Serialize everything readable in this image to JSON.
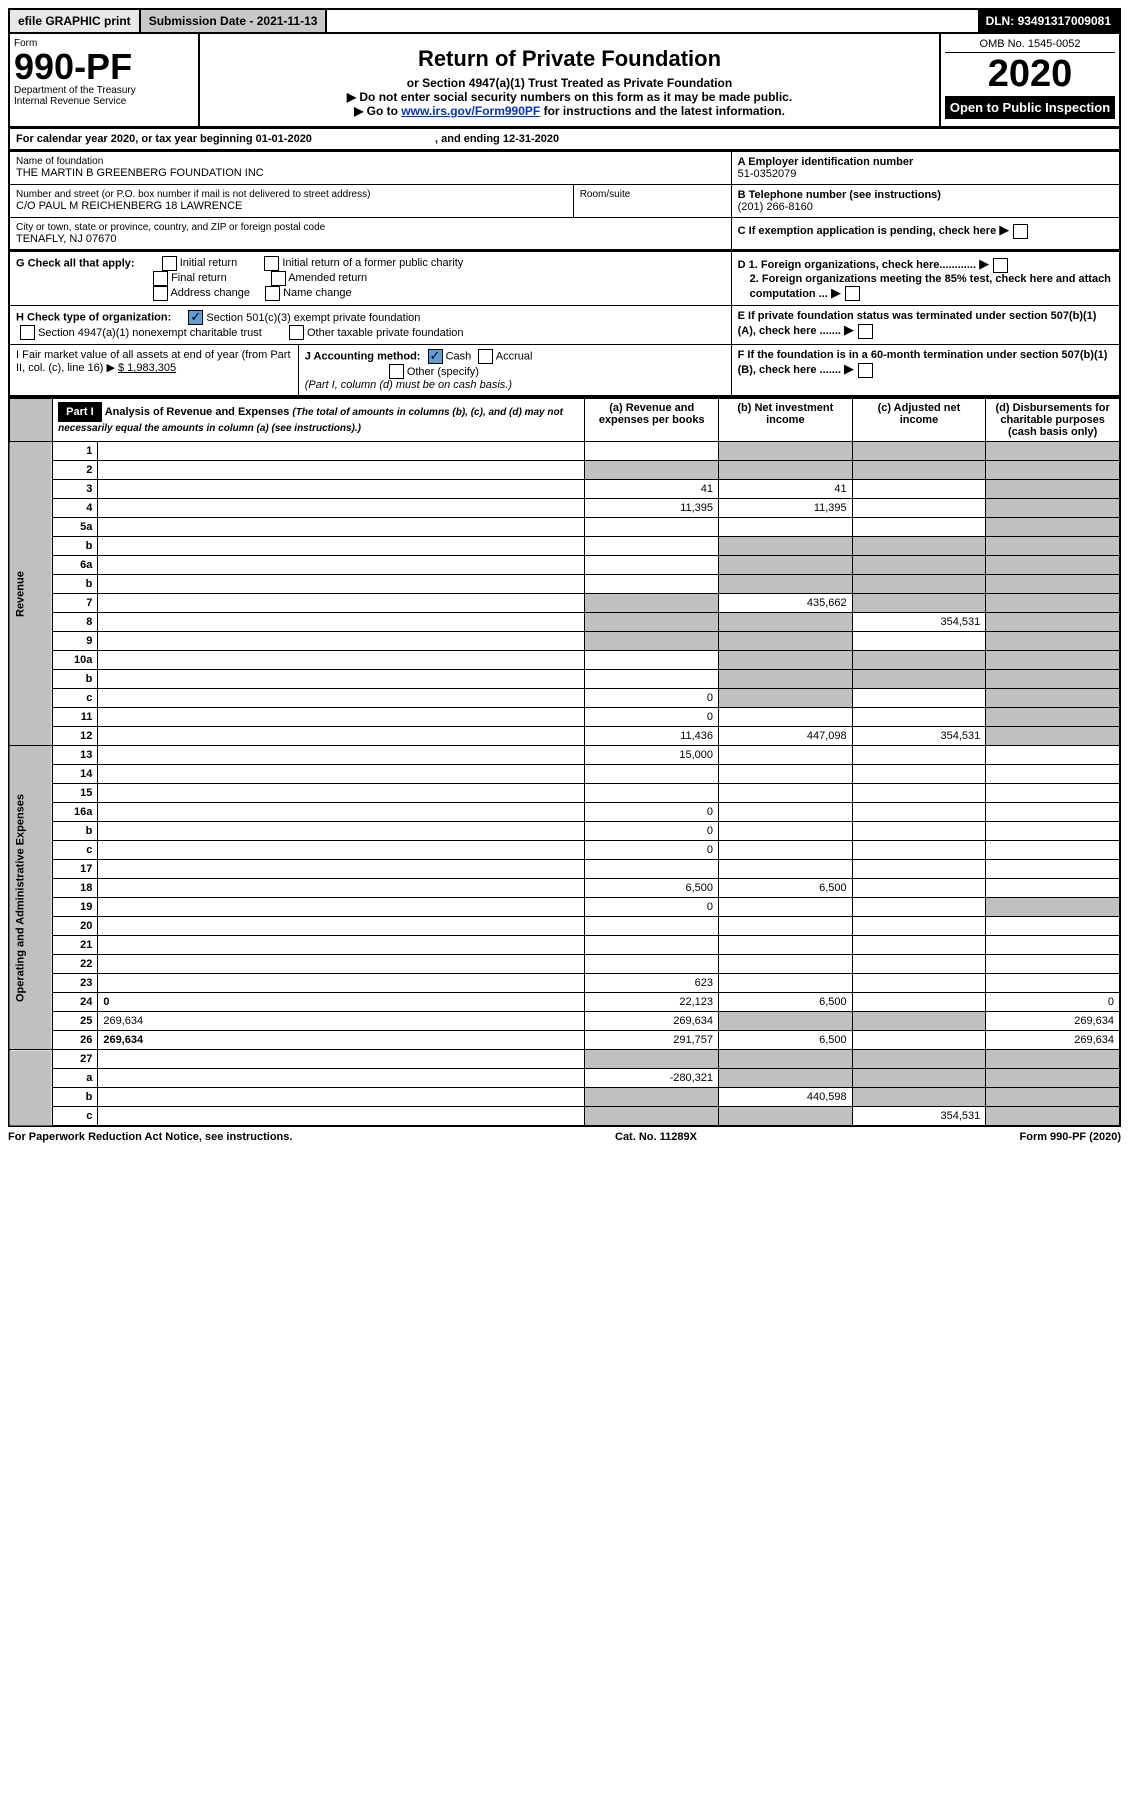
{
  "topbar": {
    "efile": "efile GRAPHIC print",
    "subdate_label": "Submission Date - ",
    "subdate": "2021-11-13",
    "dln_label": "DLN: ",
    "dln": "93491317009081"
  },
  "header": {
    "form_word": "Form",
    "form_num": "990-PF",
    "dept": "Department of the Treasury",
    "irs": "Internal Revenue Service",
    "title": "Return of Private Foundation",
    "subtitle": "or Section 4947(a)(1) Trust Treated as Private Foundation",
    "note1": "▶ Do not enter social security numbers on this form as it may be made public.",
    "note2_pre": "▶ Go to ",
    "note2_link": "www.irs.gov/Form990PF",
    "note2_post": " for instructions and the latest information.",
    "omb": "OMB No. 1545-0052",
    "year": "2020",
    "open": "Open to Public Inspection"
  },
  "cal": {
    "line_pre": "For calendar year 2020, or tax year beginning ",
    "begin": "01-01-2020",
    "mid": " , and ending ",
    "end": "12-31-2020"
  },
  "entity": {
    "name_label": "Name of foundation",
    "name": "THE MARTIN B GREENBERG FOUNDATION INC",
    "addr_label": "Number and street (or P.O. box number if mail is not delivered to street address)",
    "addr": "C/O PAUL M REICHENBERG 18 LAWRENCE",
    "room_label": "Room/suite",
    "city_label": "City or town, state or province, country, and ZIP or foreign postal code",
    "city": "TENAFLY, NJ  07670",
    "a_label": "A Employer identification number",
    "a_val": "51-0352079",
    "b_label": "B Telephone number (see instructions)",
    "b_val": "(201) 266-8160",
    "c_label": "C If exemption application is pending, check here"
  },
  "G": {
    "label": "G Check all that apply:",
    "opts": [
      "Initial return",
      "Initial return of a former public charity",
      "Final return",
      "Amended return",
      "Address change",
      "Name change"
    ]
  },
  "H": {
    "label": "H Check type of organization:",
    "opt1": "Section 501(c)(3) exempt private foundation",
    "opt2": "Section 4947(a)(1) nonexempt charitable trust",
    "opt3": "Other taxable private foundation"
  },
  "D": {
    "d1": "D 1. Foreign organizations, check here............",
    "d2": "2. Foreign organizations meeting the 85% test, check here and attach computation ..."
  },
  "E": "E  If private foundation status was terminated under section 507(b)(1)(A), check here .......",
  "F": "F  If the foundation is in a 60-month termination under section 507(b)(1)(B), check here .......",
  "I": {
    "label": "I Fair market value of all assets at end of year (from Part II, col. (c), line 16) ▶",
    "val": "$  1,983,305"
  },
  "J": {
    "label": "J Accounting method:",
    "cash": "Cash",
    "accrual": "Accrual",
    "other": "Other (specify)",
    "note": "(Part I, column (d) must be on cash basis.)"
  },
  "part1": {
    "head": "Part I",
    "title": "Analysis of Revenue and Expenses",
    "title_note": " (The total of amounts in columns (b), (c), and (d) may not necessarily equal the amounts in column (a) (see instructions).)",
    "col_a": "(a)  Revenue and expenses per books",
    "col_b": "(b)  Net investment income",
    "col_c": "(c)  Adjusted net income",
    "col_d": "(d)  Disbursements for charitable purposes (cash basis only)"
  },
  "revenue_label": "Revenue",
  "opex_label": "Operating and Administrative Expenses",
  "lines": [
    {
      "n": "1",
      "d": "",
      "a": "",
      "b": "",
      "c": "",
      "bGrey": true,
      "cGrey": true,
      "dGrey": true
    },
    {
      "n": "2",
      "d": "",
      "a": "",
      "b": "",
      "c": "",
      "aGrey": true,
      "bGrey": true,
      "cGrey": true,
      "dGrey": true
    },
    {
      "n": "3",
      "d": "",
      "a": "41",
      "b": "41",
      "c": "",
      "dGrey": true
    },
    {
      "n": "4",
      "d": "",
      "a": "11,395",
      "b": "11,395",
      "c": "",
      "dGrey": true
    },
    {
      "n": "5a",
      "d": "",
      "a": "",
      "b": "",
      "c": "",
      "dGrey": true
    },
    {
      "n": "b",
      "d": "",
      "a": "",
      "b": "",
      "c": "",
      "bGrey": true,
      "cGrey": true,
      "dGrey": true
    },
    {
      "n": "6a",
      "d": "",
      "a": "",
      "b": "",
      "c": "",
      "bGrey": true,
      "cGrey": true,
      "dGrey": true
    },
    {
      "n": "b",
      "d": "",
      "a": "",
      "b": "",
      "c": "",
      "bGrey": true,
      "cGrey": true,
      "dGrey": true
    },
    {
      "n": "7",
      "d": "",
      "a": "",
      "b": "435,662",
      "c": "",
      "aGrey": true,
      "cGrey": true,
      "dGrey": true
    },
    {
      "n": "8",
      "d": "",
      "a": "",
      "b": "",
      "c": "354,531",
      "aGrey": true,
      "bGrey": true,
      "dGrey": true
    },
    {
      "n": "9",
      "d": "",
      "a": "",
      "b": "",
      "c": "",
      "aGrey": true,
      "bGrey": true,
      "dGrey": true
    },
    {
      "n": "10a",
      "d": "",
      "a": "",
      "b": "",
      "c": "",
      "bGrey": true,
      "cGrey": true,
      "dGrey": true
    },
    {
      "n": "b",
      "d": "",
      "a": "",
      "b": "",
      "c": "",
      "bGrey": true,
      "cGrey": true,
      "dGrey": true
    },
    {
      "n": "c",
      "d": "",
      "a": "0",
      "b": "",
      "c": "",
      "bGrey": true,
      "dGrey": true
    },
    {
      "n": "11",
      "d": "",
      "a": "0",
      "b": "",
      "c": "",
      "dGrey": true
    },
    {
      "n": "12",
      "d": "",
      "bold": true,
      "a": "11,436",
      "b": "447,098",
      "c": "354,531",
      "dGrey": true
    },
    {
      "n": "13",
      "d": "",
      "a": "15,000",
      "b": "",
      "c": "",
      "sec": "opex"
    },
    {
      "n": "14",
      "d": "",
      "a": "",
      "b": "",
      "c": "",
      "sec": "opex"
    },
    {
      "n": "15",
      "d": "",
      "a": "",
      "b": "",
      "c": "",
      "sec": "opex"
    },
    {
      "n": "16a",
      "d": "",
      "a": "0",
      "b": "",
      "c": "",
      "sec": "opex"
    },
    {
      "n": "b",
      "d": "",
      "a": "0",
      "b": "",
      "c": "",
      "sec": "opex"
    },
    {
      "n": "c",
      "d": "",
      "a": "0",
      "b": "",
      "c": "",
      "sec": "opex"
    },
    {
      "n": "17",
      "d": "",
      "a": "",
      "b": "",
      "c": "",
      "sec": "opex"
    },
    {
      "n": "18",
      "d": "",
      "a": "6,500",
      "b": "6,500",
      "c": "",
      "sec": "opex"
    },
    {
      "n": "19",
      "d": "",
      "a": "0",
      "b": "",
      "c": "",
      "dGrey": true,
      "sec": "opex"
    },
    {
      "n": "20",
      "d": "",
      "a": "",
      "b": "",
      "c": "",
      "sec": "opex"
    },
    {
      "n": "21",
      "d": "",
      "a": "",
      "b": "",
      "c": "",
      "sec": "opex"
    },
    {
      "n": "22",
      "d": "",
      "a": "",
      "b": "",
      "c": "",
      "sec": "opex"
    },
    {
      "n": "23",
      "d": "",
      "a": "623",
      "b": "",
      "c": "",
      "sec": "opex"
    },
    {
      "n": "24",
      "d": "0",
      "bold": true,
      "a": "22,123",
      "b": "6,500",
      "c": "",
      "sec": "opex"
    },
    {
      "n": "25",
      "d": "269,634",
      "a": "269,634",
      "b": "",
      "c": "",
      "bGrey": true,
      "cGrey": true,
      "sec": "opex"
    },
    {
      "n": "26",
      "d": "269,634",
      "bold": true,
      "a": "291,757",
      "b": "6,500",
      "c": "",
      "sec": "opex"
    },
    {
      "n": "27",
      "d": "",
      "a": "",
      "b": "",
      "c": "",
      "aGrey": true,
      "bGrey": true,
      "cGrey": true,
      "dGrey": true,
      "sec": "none"
    },
    {
      "n": "a",
      "d": "",
      "bold": true,
      "a": "-280,321",
      "b": "",
      "c": "",
      "bGrey": true,
      "cGrey": true,
      "dGrey": true,
      "sec": "none"
    },
    {
      "n": "b",
      "d": "",
      "bold": true,
      "a": "",
      "b": "440,598",
      "c": "",
      "aGrey": true,
      "cGrey": true,
      "dGrey": true,
      "sec": "none"
    },
    {
      "n": "c",
      "d": "",
      "bold": true,
      "a": "",
      "b": "",
      "c": "354,531",
      "aGrey": true,
      "bGrey": true,
      "dGrey": true,
      "sec": "none"
    }
  ],
  "footer": {
    "left": "For Paperwork Reduction Act Notice, see instructions.",
    "mid": "Cat. No. 11289X",
    "right": "Form 990-PF (2020)"
  }
}
